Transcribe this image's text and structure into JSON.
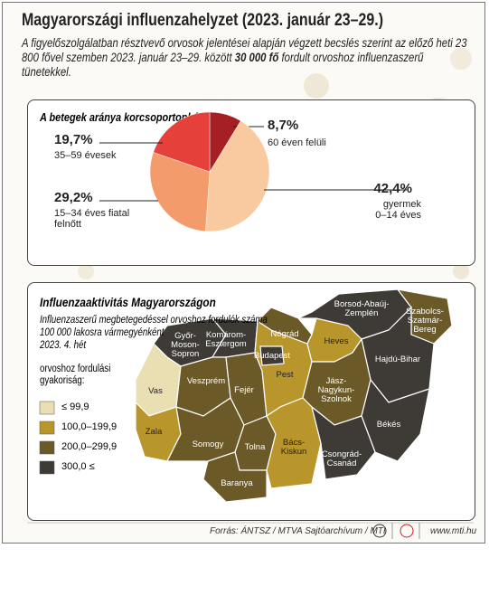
{
  "title": "Magyarországi influenzahelyzet (2023. január 23–29.)",
  "intro": [
    "A figyelőszolgálatban résztvevő orvosok jelentései alapján végzett becslés szerint az előző heti 23 800 fővel szemben 2023. január 23–29. között ",
    "30 000 fő",
    " fordult orvoshoz influenzaszerű tünetekkel."
  ],
  "chart_data": {
    "type": "pie",
    "title": "A betegek aránya korcsoportonként:",
    "categories": [
      "60 éven felüli",
      "gyermek\n0–14 éves",
      "15–34 éves fiatal\nfelnőtt",
      "35–59 évesek"
    ],
    "values": [
      8.7,
      42.4,
      29.2,
      19.7
    ],
    "value_labels": [
      "8,7%",
      "42,4%",
      "29,2%",
      "19,7%"
    ],
    "colors": [
      "#a51f24",
      "#f9c9a0",
      "#f49b6b",
      "#e6403a"
    ]
  },
  "map": {
    "title": "Influenzaaktivitás Magyarországon",
    "subtitle": "Influenzaszerű megbetegedéssel orvoshoz fordulók száma\n100 000 lakosra vármegyénként\n2023. 4. hét",
    "legend_title": "orvoshoz fordulási\ngyakoriság:",
    "legend": [
      {
        "label": "≤ 99,9",
        "color": "#e9dfb3"
      },
      {
        "label": "100,0–199,9",
        "color": "#b8962c"
      },
      {
        "label": "200,0–299,9",
        "color": "#6b5a27"
      },
      {
        "label": "300,0 ≤",
        "color": "#3e3b37"
      }
    ],
    "counties": [
      {
        "name": "Győr-\nMoson-\nSopron",
        "class": 3
      },
      {
        "name": "Komárom-\nEsztergom",
        "class": 3
      },
      {
        "name": "Vas",
        "class": 0
      },
      {
        "name": "Veszprém",
        "class": 2
      },
      {
        "name": "Zala",
        "class": 1
      },
      {
        "name": "Fejér",
        "class": 2
      },
      {
        "name": "Somogy",
        "class": 2
      },
      {
        "name": "Tolna",
        "class": 2
      },
      {
        "name": "Baranya",
        "class": 2
      },
      {
        "name": "Pest",
        "class": 1
      },
      {
        "name": "Budapest",
        "class": 3
      },
      {
        "name": "Nógrád",
        "class": 2
      },
      {
        "name": "Heves",
        "class": 1
      },
      {
        "name": "Borsod-Abaúj-\nZemplén",
        "class": 3
      },
      {
        "name": "Szabolcs-\nSzatmár-\nBereg",
        "class": 2
      },
      {
        "name": "Hajdú-Bihar",
        "class": 3
      },
      {
        "name": "Jász-\nNagykun-\nSzolnok",
        "class": 2
      },
      {
        "name": "Bács-\nKiskun",
        "class": 1
      },
      {
        "name": "Békés",
        "class": 3
      },
      {
        "name": "Csongrád-\nCsanád",
        "class": 3
      }
    ]
  },
  "footer": {
    "source": "Forrás: ÁNTSZ / MTVA Sajtóarchívum / MTI",
    "url": "www.mti.hu"
  }
}
